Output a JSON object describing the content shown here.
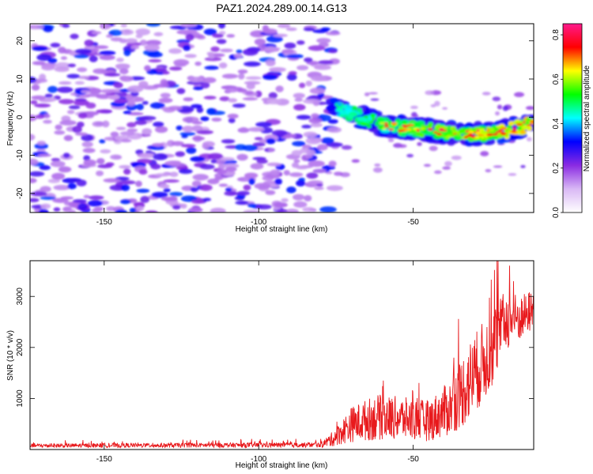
{
  "title": "PAZ1.2024.289.00.14.G13",
  "chart_data": [
    {
      "type": "heatmap",
      "xlabel": "Height of straight line (km)",
      "ylabel": "Frequency (Hz)",
      "xlim": [
        -174,
        -11
      ],
      "ylim": [
        -25,
        24.5
      ],
      "xticks": [
        -150,
        -100,
        -50
      ],
      "yticks": [
        -20,
        -10,
        0,
        10,
        20
      ],
      "xtick_labels": [
        "-150",
        "-100",
        "-50"
      ],
      "ytick_labels": [
        "-20",
        "-10",
        "0",
        "10",
        "20"
      ],
      "colorbar": {
        "label": "Normalized spectral amplitude",
        "range": [
          0.0,
          0.85
        ],
        "ticks": [
          0.0,
          0.2,
          0.4,
          0.6,
          0.8
        ],
        "tick_labels": [
          "0.0",
          "0.2",
          "0.4",
          "0.6",
          "0.8"
        ],
        "colors": [
          "#ffffff",
          "#d9b8f5",
          "#8a2be2",
          "#0000ff",
          "#00ffff",
          "#00ff00",
          "#ffff00",
          "#ff0000",
          "#ff1a8c"
        ]
      },
      "signal_track": [
        {
          "x": -77,
          "f": 3.5
        },
        {
          "x": -70,
          "f": 1.0
        },
        {
          "x": -60,
          "f": -2.0
        },
        {
          "x": -50,
          "f": -3.0
        },
        {
          "x": -40,
          "f": -4.0
        },
        {
          "x": -30,
          "f": -4.5
        },
        {
          "x": -20,
          "f": -3.5
        },
        {
          "x": -11,
          "f": -1.5
        }
      ],
      "noise_extent_x": [
        -174,
        -75
      ]
    },
    {
      "type": "line",
      "xlabel": "Height of straight line (km)",
      "ylabel": "SNR (10 * v/v)",
      "xlim": [
        -174,
        -11
      ],
      "ylim": [
        0,
        3700
      ],
      "xticks": [
        -150,
        -100,
        -50
      ],
      "yticks": [
        1000,
        2000,
        3000
      ],
      "xtick_labels": [
        "-150",
        "-100",
        "-50"
      ],
      "ytick_labels": [
        "1000",
        "2000",
        "3000"
      ],
      "line_color": "#e8191c",
      "envelope": [
        {
          "x": -174,
          "base": 60,
          "amp": 80
        },
        {
          "x": -80,
          "base": 70,
          "amp": 100
        },
        {
          "x": -76,
          "base": 150,
          "amp": 300
        },
        {
          "x": -70,
          "base": 350,
          "amp": 700
        },
        {
          "x": -62,
          "base": 450,
          "amp": 900
        },
        {
          "x": -55,
          "base": 450,
          "amp": 850
        },
        {
          "x": -45,
          "base": 400,
          "amp": 800
        },
        {
          "x": -38,
          "base": 600,
          "amp": 1100
        },
        {
          "x": -32,
          "base": 1000,
          "amp": 1600
        },
        {
          "x": -25,
          "base": 1600,
          "amp": 1600
        },
        {
          "x": -20,
          "base": 2300,
          "amp": 1200
        },
        {
          "x": -15,
          "base": 2400,
          "amp": 900
        },
        {
          "x": -11,
          "base": 2600,
          "amp": 800
        }
      ]
    }
  ]
}
